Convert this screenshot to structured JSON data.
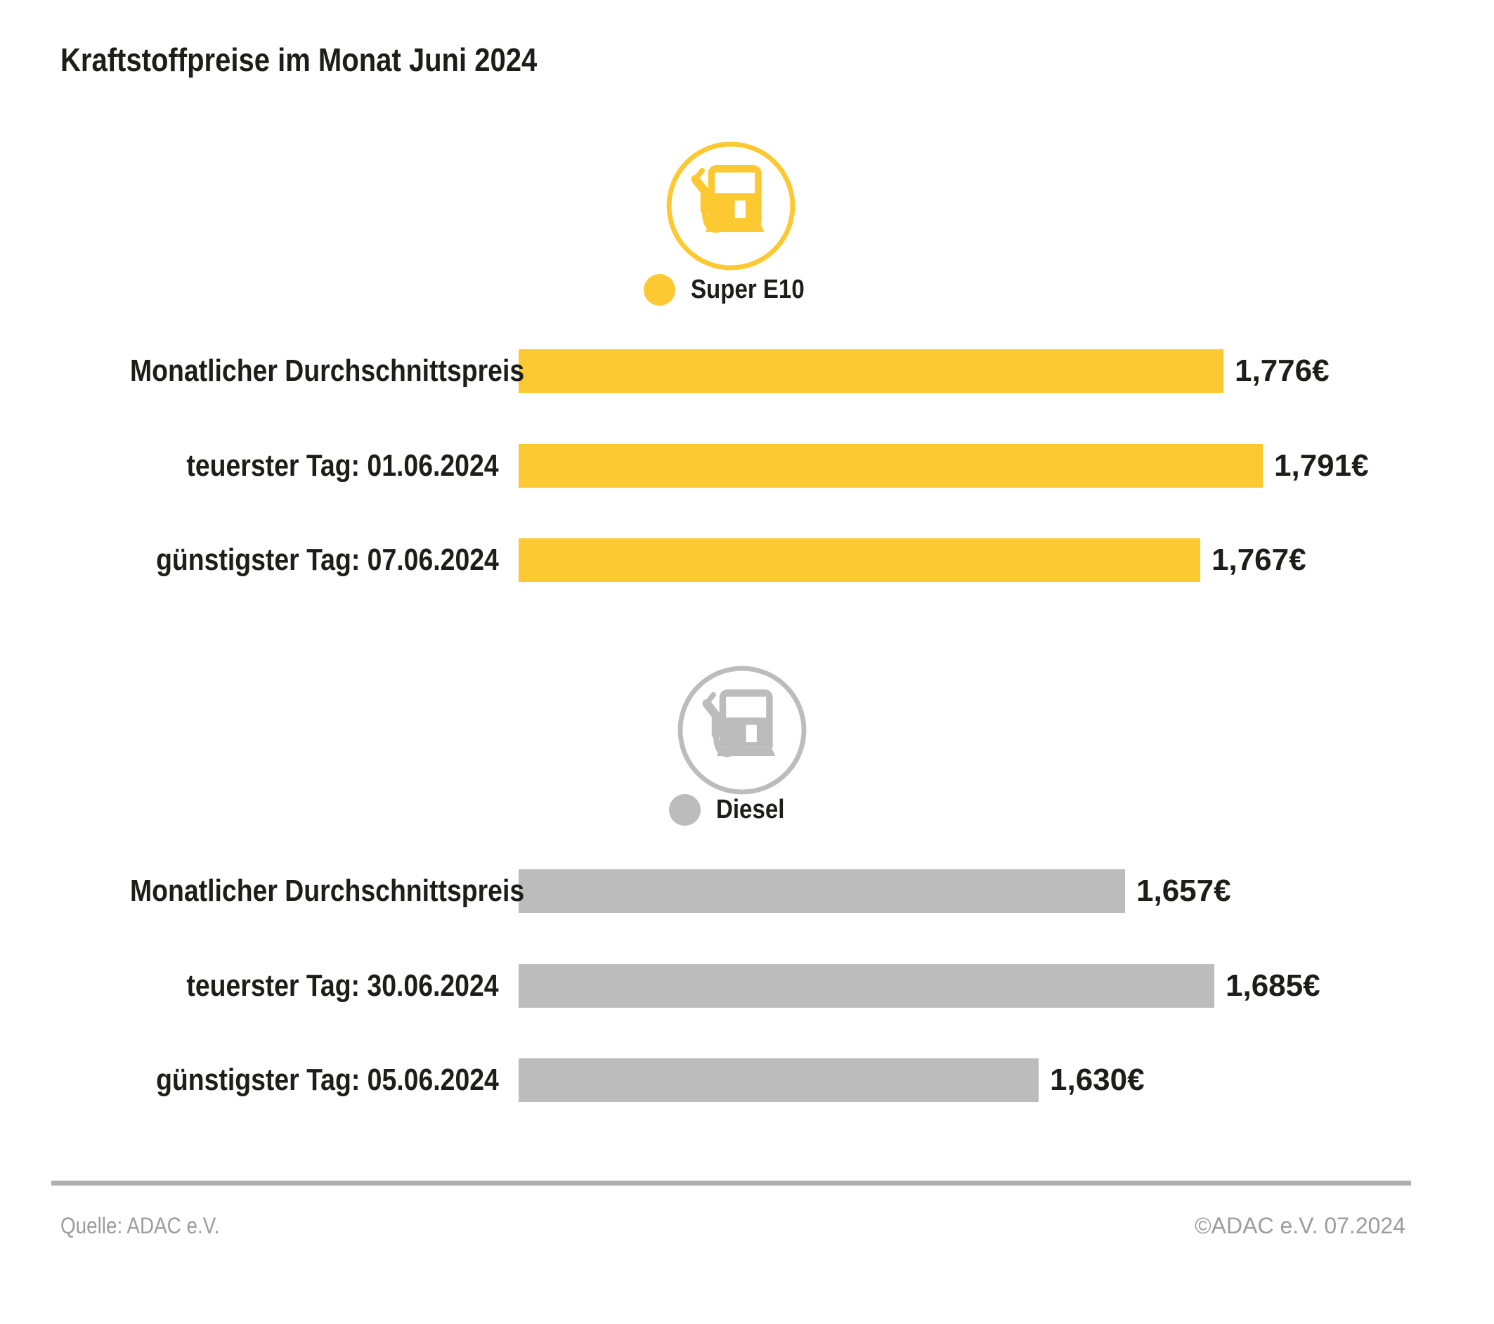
{
  "title": "Kraftstoffpreise im Monat Juni 2024",
  "colors": {
    "super_e10": "#FDC932",
    "diesel": "#BCBCBC",
    "text": "#1D1D1B",
    "footer_text": "#9C9C9C",
    "divider": "#AFAFAF",
    "background": "#FFFFFF"
  },
  "chart_data": [
    {
      "type": "bar",
      "orientation": "horizontal",
      "series_name": "Super E10",
      "color": "#FDC932",
      "icon": "fuel-pump-icon",
      "categories": [
        "Monatlicher Durchschnittspreis",
        "teuerster Tag: 01.06.2024",
        "günstigster Tag: 07.06.2024"
      ],
      "values": [
        1.776,
        1.791,
        1.767
      ],
      "value_labels": [
        "1,776€",
        "1,791€",
        "1,767€"
      ],
      "xlim": [
        1.505,
        1.791
      ],
      "grid": false,
      "value_label_position": "end-of-bar"
    },
    {
      "type": "bar",
      "orientation": "horizontal",
      "series_name": "Diesel",
      "color": "#BCBCBC",
      "icon": "fuel-pump-icon",
      "categories": [
        "Monatlicher Durchschnittspreis",
        "teuerster Tag: 30.06.2024",
        "günstigster Tag: 05.06.2024"
      ],
      "values": [
        1.657,
        1.685,
        1.63
      ],
      "value_labels": [
        "1,657€",
        "1,685€",
        "1,630€"
      ],
      "xlim": [
        1.467,
        1.685
      ],
      "grid": false,
      "value_label_position": "end-of-bar"
    }
  ],
  "footer": {
    "source": "Quelle: ADAC e.V.",
    "copyright": "©ADAC e.V. 07.2024"
  }
}
